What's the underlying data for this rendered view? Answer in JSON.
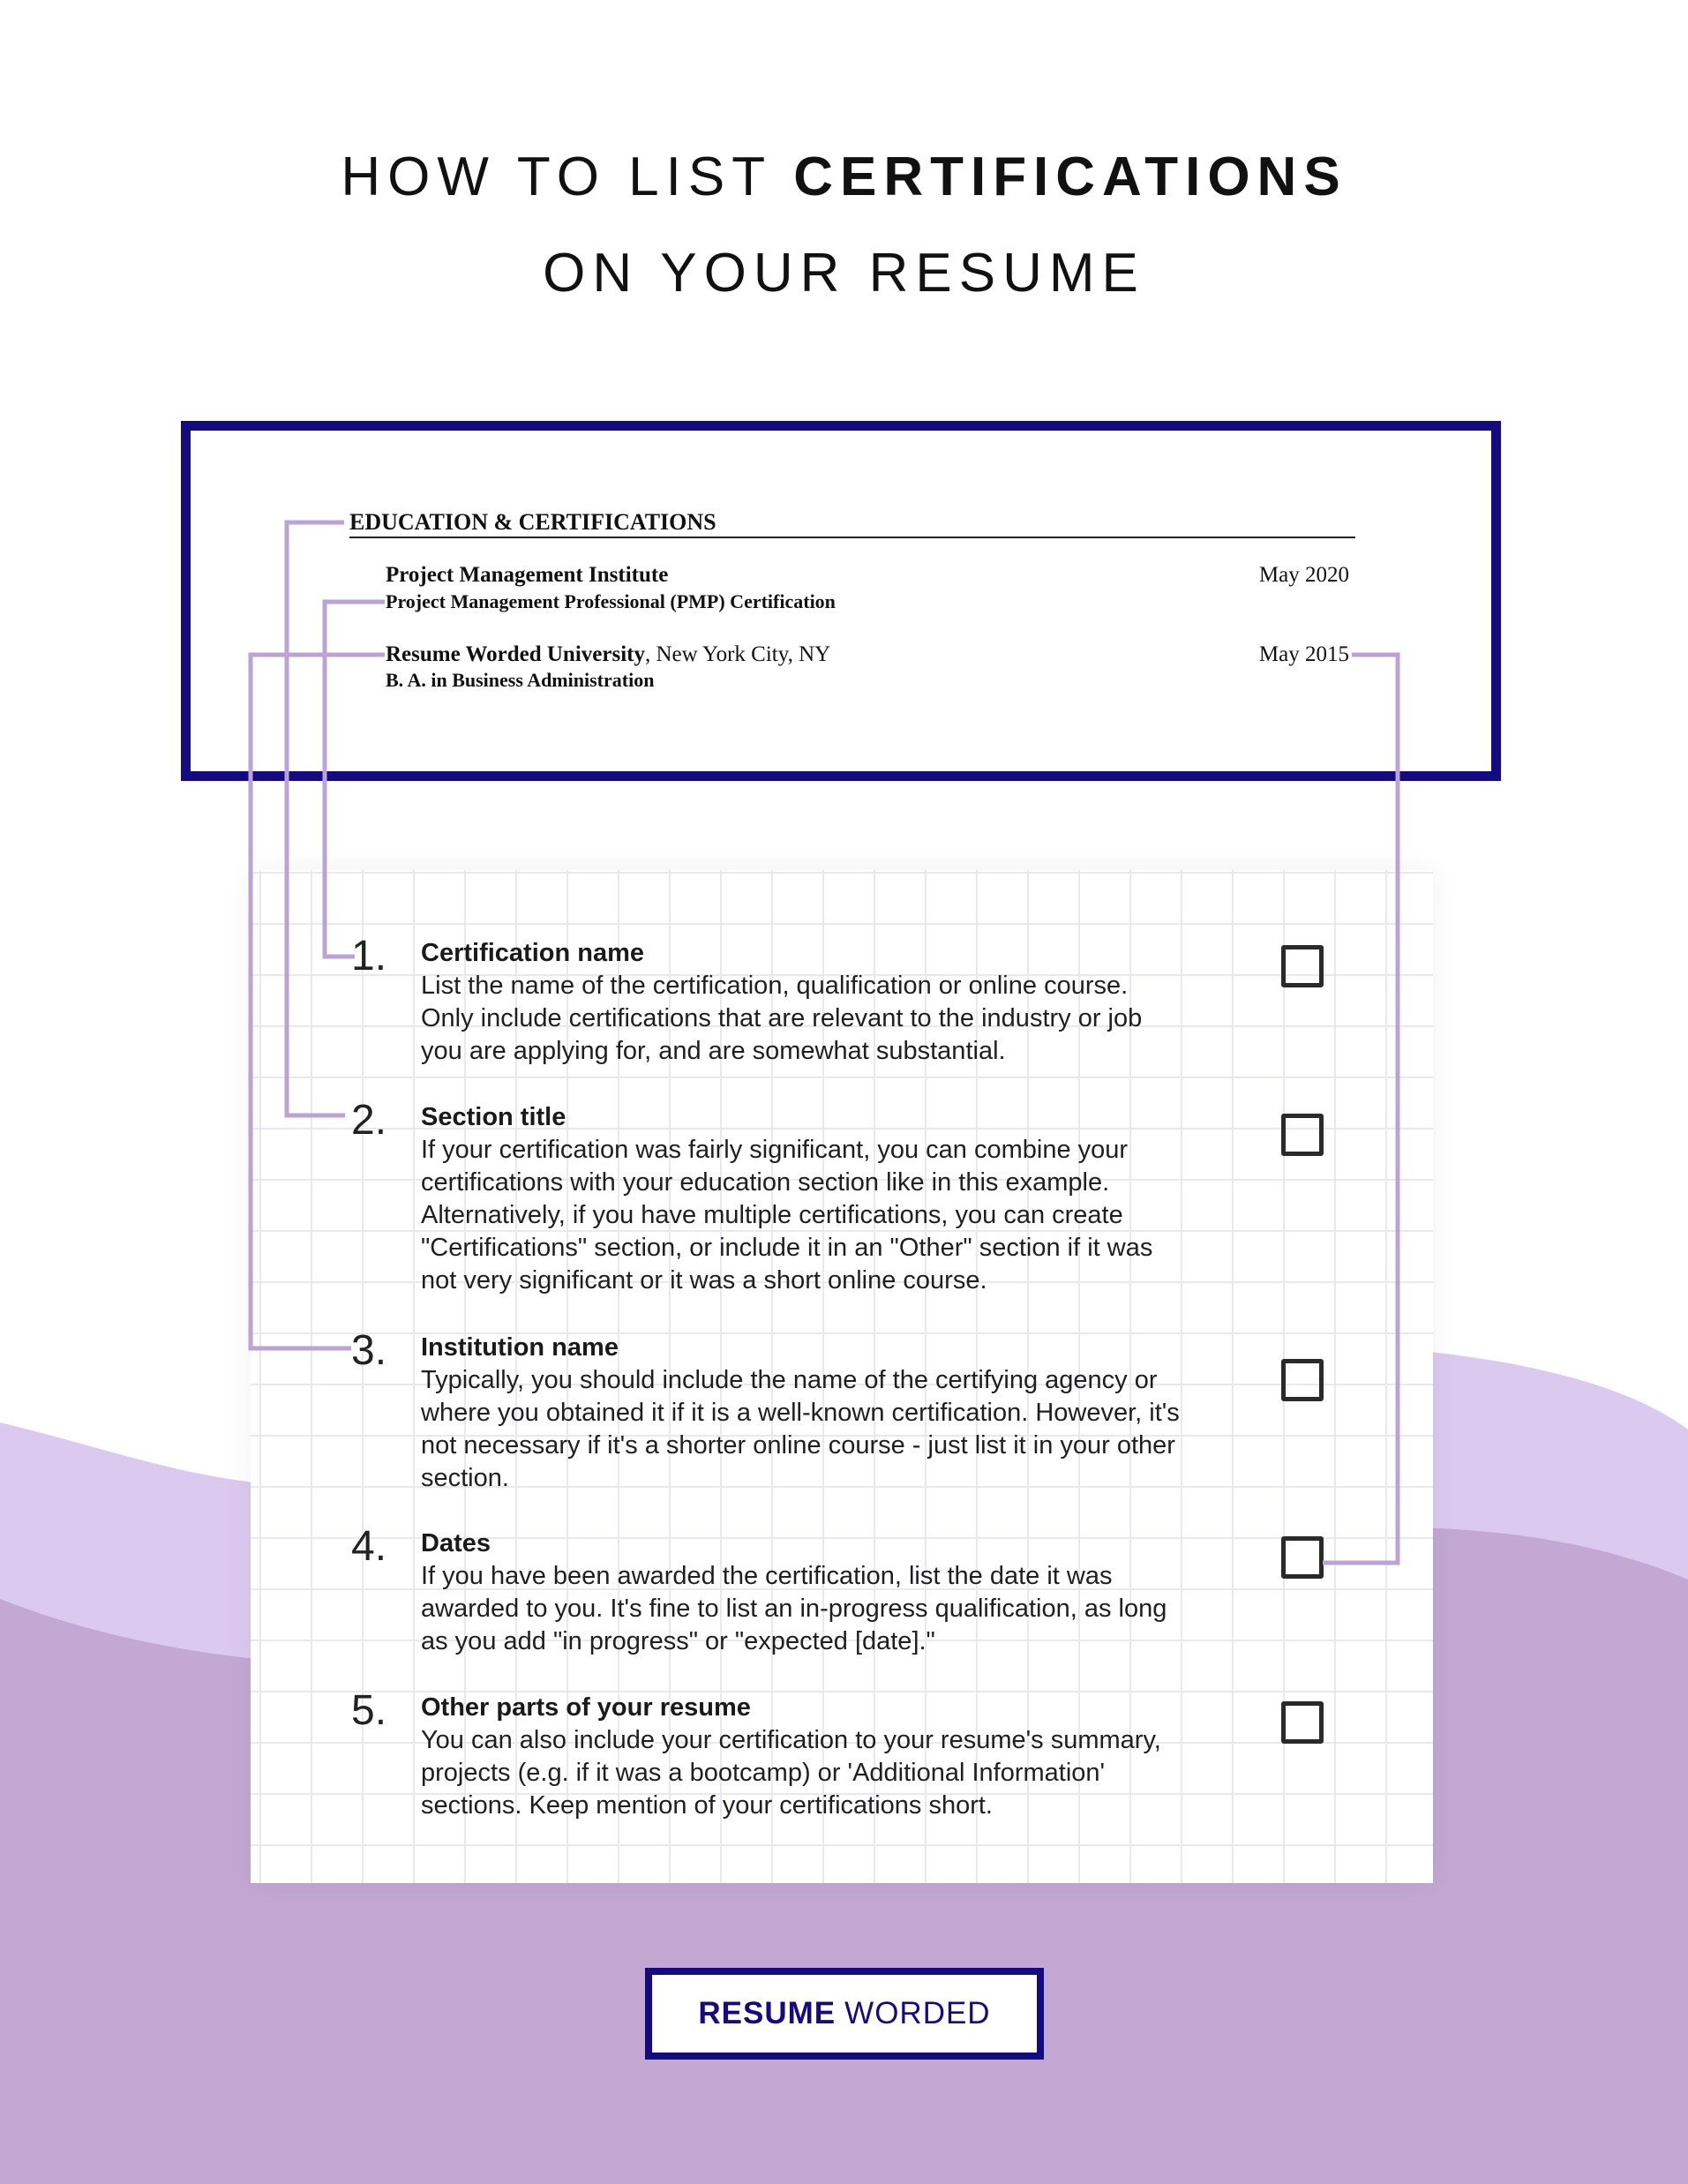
{
  "title": {
    "line1_light": "HOW TO LIST",
    "line1_bold": "CERTIFICATIONS",
    "line2": "ON YOUR RESUME"
  },
  "resume": {
    "section_heading": "EDUCATION & CERTIFICATIONS",
    "entries": [
      {
        "institution": "Project Management Institute",
        "location": "",
        "detail": "Project Management Professional (PMP) Certification",
        "date": "May 2020"
      },
      {
        "institution": "Resume Worded University",
        "location": ", New York City, NY",
        "detail": "B. A. in Business Administration",
        "date": "May 2015"
      }
    ]
  },
  "items": [
    {
      "number": "1.",
      "title": "Certification name",
      "body": [
        "List the name of the certification, qualification or online course.",
        "Only include certifications that are relevant to the industry or job",
        "you are applying for, and are somewhat substantial."
      ]
    },
    {
      "number": "2.",
      "title": "Section title",
      "body": [
        "If your certification was fairly significant, you can combine your",
        "certifications with your education section like in this example.",
        "Alternatively, if you have multiple certifications, you can create",
        "\"Certifications\" section, or include it in an \"Other\" section if it was",
        "not very significant or it was a short online course."
      ]
    },
    {
      "number": "3.",
      "title": "Institution name",
      "body": [
        "Typically, you should include the name of the certifying agency or",
        "where you obtained it if it is a well-known certification. However, it's",
        "not necessary if it's a shorter online course - just list it in your other",
        "section."
      ]
    },
    {
      "number": "4.",
      "title": "Dates",
      "body": [
        "If you have been awarded the certification, list the date it was",
        "awarded to you. It's fine to list an in-progress qualification, as long",
        "as you add \"in progress\" or \"expected [date].\""
      ]
    },
    {
      "number": "5.",
      "title": "Other parts of your resume",
      "body": [
        "You can also include your certification to your resume's summary,",
        "projects (e.g. if it was a bootcamp) or 'Additional Information'",
        "sections. Keep mention of your certifications short."
      ]
    }
  ],
  "logo": {
    "bold": "RESUME",
    "light": "WORDED"
  },
  "colors": {
    "navy": "#150b80",
    "connector": "#bba3d6",
    "wave_light": "#dcc9ef",
    "wave_dark": "#c2a8d3"
  }
}
